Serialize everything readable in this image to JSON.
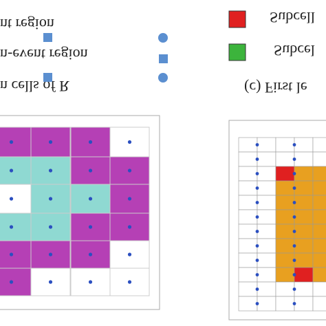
{
  "legend": {
    "items": [
      "nt region",
      "n-event region",
      "n cells of R"
    ],
    "subcells": [
      "Subcell",
      "Subcel"
    ]
  },
  "caption": "(c) First le"
}
